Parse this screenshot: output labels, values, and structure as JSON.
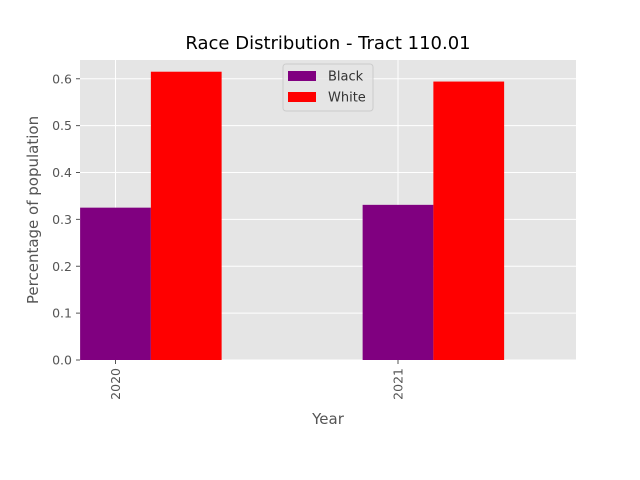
{
  "chart_data": {
    "type": "bar",
    "title": "Race Distribution - Tract 110.01",
    "xlabel": "Year",
    "ylabel": "Percentage of population",
    "categories": [
      "2020",
      "2021"
    ],
    "series": [
      {
        "name": "Black",
        "values": [
          0.325,
          0.331
        ],
        "color": "#800080"
      },
      {
        "name": "White",
        "values": [
          0.615,
          0.594
        ],
        "color": "#ff0000"
      }
    ],
    "ylim": [
      0,
      0.64
    ],
    "yticks": [
      "0.0",
      "0.1",
      "0.2",
      "0.3",
      "0.4",
      "0.5",
      "0.6"
    ],
    "grid": true,
    "legend": "top-center",
    "background_color": "#e5e5e5",
    "grid_color": "#ffffff"
  }
}
